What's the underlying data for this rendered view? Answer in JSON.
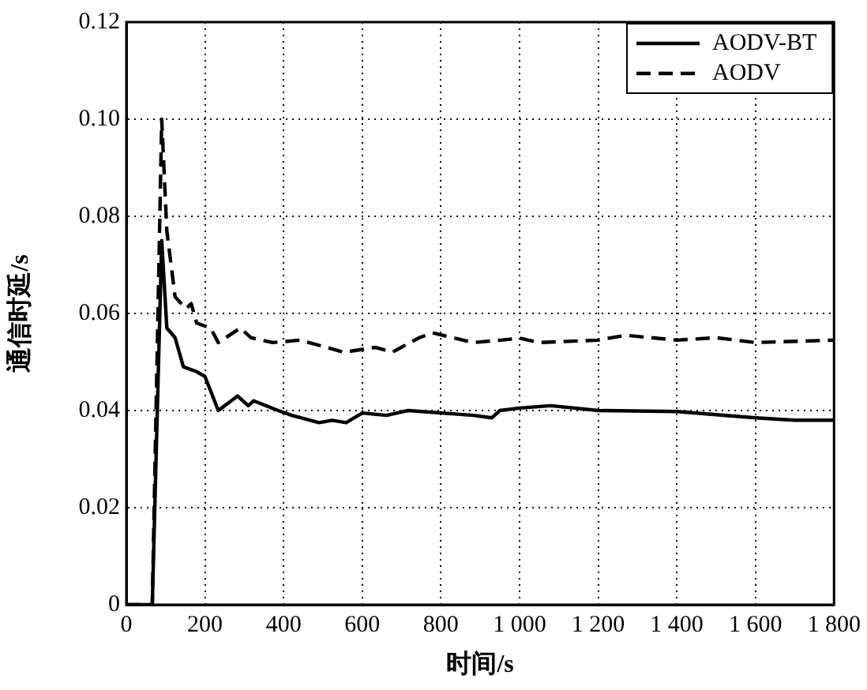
{
  "chart_data": {
    "type": "line",
    "xlabel": "时间/s",
    "ylabel": "通信时延/s",
    "xlim": [
      0,
      1800
    ],
    "ylim": [
      0,
      0.12
    ],
    "xticks": [
      0,
      200,
      400,
      600,
      800,
      {
        "value": 1000,
        "label": "1 000"
      },
      {
        "value": 1200,
        "label": "1 200"
      },
      {
        "value": 1400,
        "label": "1 400"
      },
      {
        "value": 1600,
        "label": "1 600"
      },
      {
        "value": 1800,
        "label": "1 800"
      }
    ],
    "yticks": [
      0,
      0.02,
      0.04,
      0.06,
      0.08,
      {
        "value": 0.1,
        "label": "0.10"
      },
      0.12
    ],
    "grid": true,
    "legend": "top right",
    "marker": "none",
    "series": [
      {
        "name": "AODV-BT",
        "color": "#000000",
        "line_style": "solid",
        "x": [
          0,
          66,
          90,
          103,
          124,
          145,
          179,
          200,
          234,
          283,
          310,
          324,
          386,
          421,
          490,
          524,
          559,
          600,
          662,
          717,
          883,
          930,
          950,
          1000,
          1080,
          1200,
          1400,
          1600,
          1700,
          1800
        ],
        "values": [
          0,
          0,
          0.075,
          0.057,
          0.055,
          0.049,
          0.048,
          0.047,
          0.04,
          0.043,
          0.041,
          0.042,
          0.04,
          0.039,
          0.0375,
          0.038,
          0.0375,
          0.0395,
          0.039,
          0.04,
          0.039,
          0.0385,
          0.04,
          0.0405,
          0.041,
          0.04,
          0.0398,
          0.0385,
          0.038,
          0.038
        ]
      },
      {
        "name": "AODV",
        "color": "#000000",
        "line_style": "dashed",
        "x": [
          0,
          66,
          90,
          103,
          124,
          152,
          165,
          179,
          214,
          234,
          290,
          317,
          372,
          441,
          510,
          552,
          634,
          676,
          745,
          779,
          883,
          952,
          1000,
          1050,
          1200,
          1270,
          1400,
          1500,
          1600,
          1800
        ],
        "values": [
          0,
          0,
          0.1,
          0.077,
          0.0634,
          0.061,
          0.062,
          0.058,
          0.057,
          0.054,
          0.057,
          0.055,
          0.054,
          0.0545,
          0.053,
          0.052,
          0.053,
          0.052,
          0.055,
          0.056,
          0.054,
          0.0545,
          0.0549,
          0.054,
          0.0545,
          0.0555,
          0.0545,
          0.055,
          0.054,
          0.0545
        ]
      }
    ]
  }
}
